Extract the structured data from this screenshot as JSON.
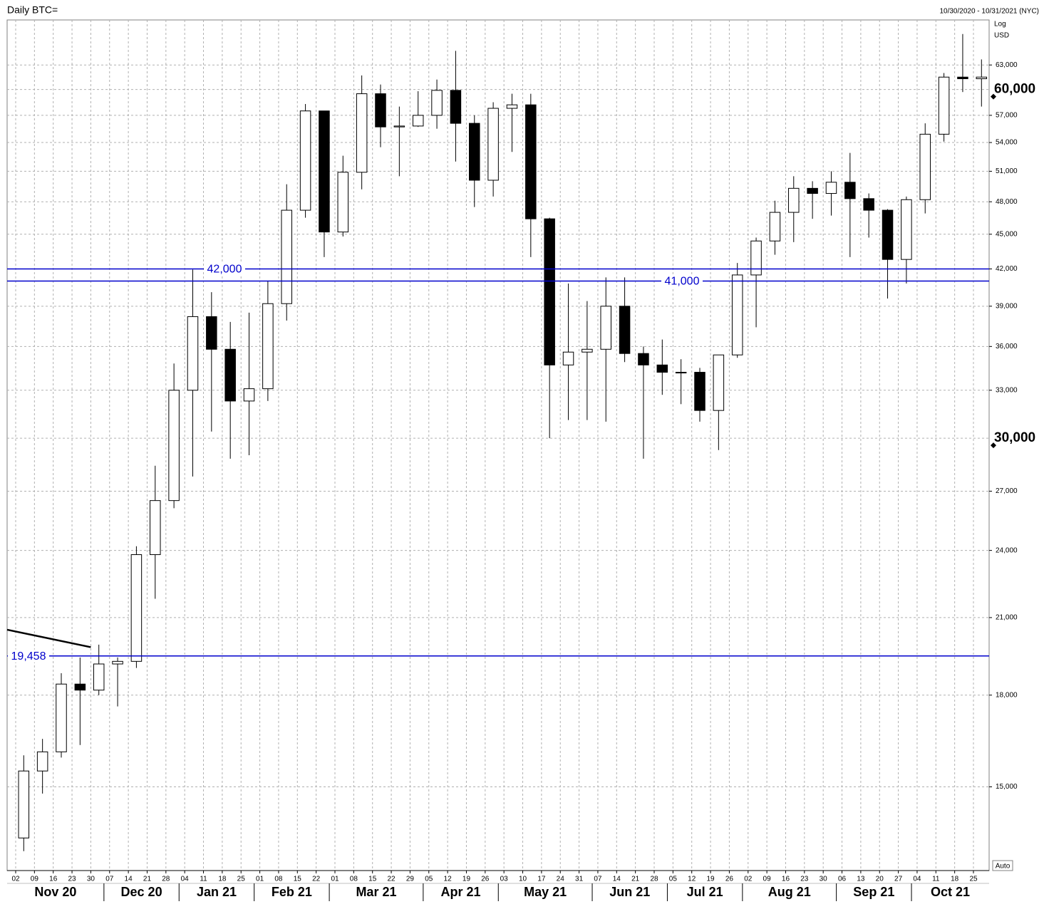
{
  "chart_data": {
    "type": "candlestick",
    "title": "Daily BTC=",
    "date_range": "10/30/2020 - 10/31/2021 (NYC)",
    "scale_label": "Log",
    "currency": "USD",
    "auto_button": "Auto",
    "log_scale": true,
    "grid": true,
    "up_color": "#ffffff",
    "down_color": "#000000",
    "categories": [
      "02",
      "09",
      "16",
      "23",
      "30",
      "07",
      "14",
      "21",
      "28",
      "04",
      "11",
      "18",
      "25",
      "01",
      "08",
      "15",
      "22",
      "01",
      "08",
      "15",
      "22",
      "29",
      "05",
      "12",
      "19",
      "26",
      "03",
      "10",
      "17",
      "24",
      "31",
      "07",
      "14",
      "21",
      "28",
      "05",
      "12",
      "19",
      "26",
      "02",
      "09",
      "16",
      "23",
      "30",
      "06",
      "13",
      "20",
      "27",
      "04",
      "11",
      "18",
      "25"
    ],
    "months": [
      "Nov 20",
      null,
      null,
      null,
      null,
      "Dec 20",
      null,
      null,
      null,
      "Jan 21",
      null,
      null,
      null,
      "Feb 21",
      null,
      null,
      null,
      "Mar 21",
      null,
      null,
      null,
      null,
      "Apr 21",
      null,
      null,
      null,
      "May 21",
      null,
      null,
      null,
      null,
      "Jun 21",
      null,
      null,
      null,
      "Jul 21",
      null,
      null,
      null,
      "Aug 21",
      null,
      null,
      null,
      null,
      "Sep 21",
      null,
      null,
      null,
      "Oct 21",
      null,
      null,
      null
    ],
    "open": [
      13550,
      15480,
      16080,
      18400,
      18180,
      19150,
      19250,
      23800,
      26500,
      33000,
      38200,
      35800,
      32300,
      33100,
      39200,
      47200,
      57500,
      45200,
      50900,
      59500,
      55700,
      55800,
      57000,
      59900,
      56100,
      50100,
      57800,
      58200,
      46400,
      34700,
      35600,
      35800,
      39000,
      35500,
      34700,
      34200,
      34200,
      31700,
      35400,
      41500,
      44400,
      47000,
      49300,
      48800,
      49900,
      48300,
      47200,
      42800,
      48200,
      54900,
      61500,
      61300
    ],
    "high": [
      15970,
      16500,
      18800,
      19400,
      19900,
      19400,
      24200,
      28400,
      34800,
      41950,
      40100,
      37800,
      38500,
      41000,
      49700,
      58300,
      57500,
      52600,
      61700,
      60600,
      58000,
      59800,
      61200,
      64800,
      57000,
      58500,
      59500,
      59500,
      46500,
      40800,
      39400,
      41300,
      41300,
      36000,
      36500,
      35100,
      34500,
      35400,
      42500,
      44700,
      48100,
      50500,
      50000,
      51000,
      52900,
      48800,
      47300,
      48500,
      56100,
      62000,
      67000,
      63700
    ],
    "low": [
      13200,
      14800,
      15900,
      16300,
      18000,
      17600,
      19000,
      21800,
      26100,
      27800,
      30400,
      28800,
      29000,
      32300,
      37900,
      46500,
      43000,
      44800,
      49200,
      53500,
      50500,
      55700,
      55500,
      52000,
      47500,
      48500,
      53000,
      43000,
      30000,
      31100,
      31100,
      31000,
      34900,
      28800,
      32700,
      32100,
      31000,
      29300,
      35200,
      37400,
      43200,
      44300,
      46400,
      46700,
      43000,
      44700,
      39600,
      40800,
      46900,
      54100,
      59700,
      58000
    ],
    "close": [
      15480,
      16080,
      18400,
      18180,
      19150,
      19250,
      23800,
      26500,
      33000,
      38200,
      35800,
      32300,
      33100,
      39200,
      47200,
      57500,
      45200,
      50900,
      59500,
      55700,
      55800,
      57000,
      59900,
      56100,
      50100,
      57800,
      58200,
      46400,
      34700,
      35600,
      35800,
      39000,
      35500,
      34700,
      34200,
      34200,
      31700,
      35400,
      41500,
      44400,
      47000,
      49300,
      48800,
      49900,
      48300,
      47200,
      42800,
      48200,
      54900,
      61500,
      61300,
      61500
    ],
    "ylim": [
      12700,
      68900
    ],
    "yticks": [
      {
        "value": 15000,
        "label": "15,000"
      },
      {
        "value": 18000,
        "label": "18,000"
      },
      {
        "value": 21000,
        "label": "21,000"
      },
      {
        "value": 24000,
        "label": "24,000"
      },
      {
        "value": 27000,
        "label": "27,000"
      },
      {
        "value": 33000,
        "label": "33,000"
      },
      {
        "value": 36000,
        "label": "36,000"
      },
      {
        "value": 39000,
        "label": "39,000"
      },
      {
        "value": 42000,
        "label": "42,000"
      },
      {
        "value": 45000,
        "label": "45,000"
      },
      {
        "value": 48000,
        "label": "48,000"
      },
      {
        "value": 51000,
        "label": "51,000"
      },
      {
        "value": 54000,
        "label": "54,000"
      },
      {
        "value": 57000,
        "label": "57,000"
      },
      {
        "value": 63000,
        "label": "63,000"
      }
    ],
    "major_yticks": [
      {
        "value": 30000,
        "label": "30,000"
      },
      {
        "value": 60000,
        "label": "60,000"
      }
    ],
    "levels": [
      {
        "value": 42000,
        "label": "42,000"
      },
      {
        "value": 41000,
        "label": "41,000"
      },
      {
        "value": 19458,
        "label": "19,458"
      }
    ],
    "trend_line": [
      20500,
      19800
    ]
  }
}
